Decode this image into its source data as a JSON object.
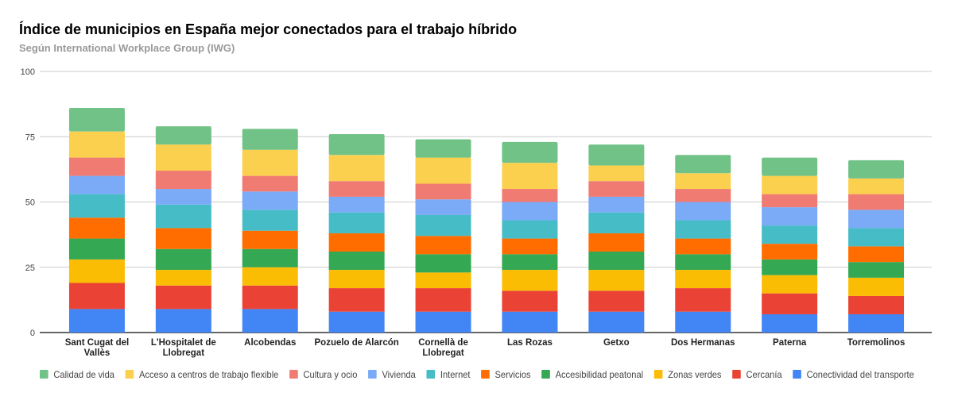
{
  "chart_data": {
    "type": "bar",
    "stacked": true,
    "title": "Índice de municipios en España mejor conectados para el trabajo híbrido",
    "subtitle": "Según International Workplace Group (IWG)",
    "xlabel": "",
    "ylabel": "",
    "ylim": [
      0,
      100
    ],
    "yticks": [
      0,
      25,
      50,
      75,
      100
    ],
    "grid": true,
    "legend_position": "bottom",
    "categories": [
      [
        "Sant Cugat del",
        "Vallès"
      ],
      [
        "L'Hospitalet de",
        "Llobregat"
      ],
      [
        "Alcobendas"
      ],
      [
        "Pozuelo de Alarcón"
      ],
      [
        "Cornellà de",
        "Llobregat"
      ],
      [
        "Las Rozas"
      ],
      [
        "Getxo"
      ],
      [
        "Dos Hermanas"
      ],
      [
        "Paterna"
      ],
      [
        "Torremolinos"
      ]
    ],
    "series": [
      {
        "name": "Conectividad del transporte",
        "color": "#4285F4",
        "values": [
          9,
          9,
          9,
          8,
          8,
          8,
          8,
          8,
          7,
          7
        ]
      },
      {
        "name": "Cercanía",
        "color": "#EA4335",
        "values": [
          10,
          9,
          9,
          9,
          9,
          8,
          8,
          9,
          8,
          7
        ]
      },
      {
        "name": "Zonas verdes",
        "color": "#FBBC04",
        "values": [
          9,
          6,
          7,
          7,
          6,
          8,
          8,
          7,
          7,
          7
        ]
      },
      {
        "name": "Accesibilidad peatonal",
        "color": "#34A853",
        "values": [
          8,
          8,
          7,
          7,
          7,
          6,
          7,
          6,
          6,
          6
        ]
      },
      {
        "name": "Servicios",
        "color": "#FF6D01",
        "values": [
          8,
          8,
          7,
          7,
          7,
          6,
          7,
          6,
          6,
          6
        ]
      },
      {
        "name": "Internet",
        "color": "#46BDC6",
        "values": [
          9,
          9,
          8,
          8,
          8,
          7,
          8,
          7,
          7,
          7
        ]
      },
      {
        "name": "Vivienda",
        "color": "#7BAAF7",
        "values": [
          7,
          6,
          7,
          6,
          6,
          7,
          6,
          7,
          7,
          7
        ]
      },
      {
        "name": "Cultura y ocio",
        "color": "#F07B72",
        "values": [
          7,
          7,
          6,
          6,
          6,
          5,
          6,
          5,
          5,
          6
        ]
      },
      {
        "name": "Acceso a centros de trabajo flexible",
        "color": "#FCD04F",
        "values": [
          10,
          10,
          10,
          10,
          10,
          10,
          6,
          6,
          7,
          6
        ]
      },
      {
        "name": "Calidad de vida",
        "color": "#71C287",
        "values": [
          9,
          7,
          8,
          8,
          7,
          8,
          8,
          7,
          7,
          7
        ]
      }
    ],
    "legend_order": [
      9,
      8,
      7,
      6,
      5,
      4,
      3,
      2,
      1,
      0
    ]
  }
}
